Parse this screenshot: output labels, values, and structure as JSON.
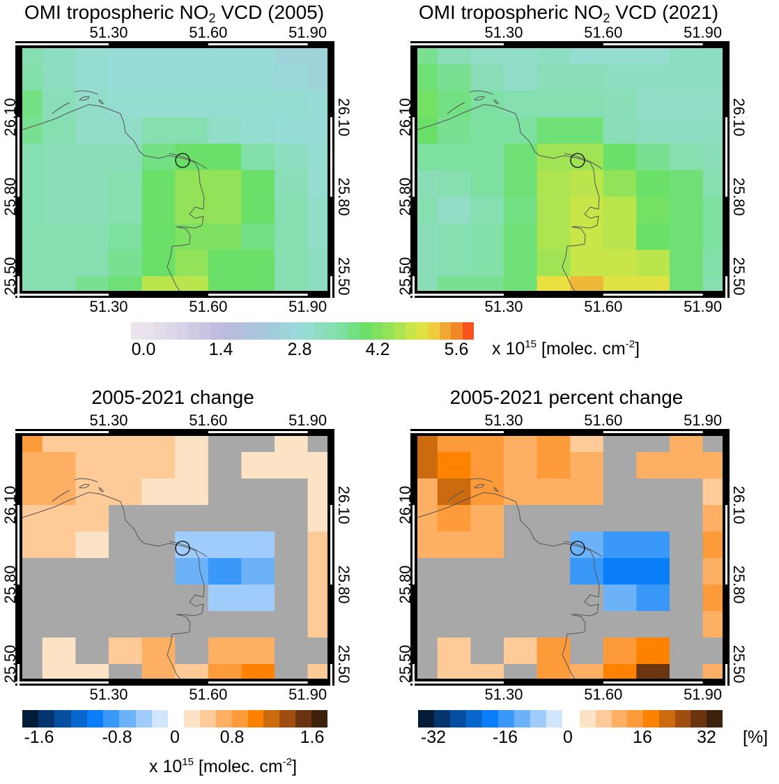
{
  "colors": {
    "no_change_gray": "#a8a8a8",
    "frame": "#000000",
    "coastline": "#555555",
    "main_colormap_stops": [
      {
        "v": 0.0,
        "c": "#ece4ec"
      },
      {
        "v": 0.7,
        "c": "#d8d2e8"
      },
      {
        "v": 1.4,
        "c": "#bcbade"
      },
      {
        "v": 2.1,
        "c": "#a8c6dc"
      },
      {
        "v": 2.8,
        "c": "#98dcd8"
      },
      {
        "v": 3.5,
        "c": "#7ee0a0"
      },
      {
        "v": 3.9,
        "c": "#6ae068"
      },
      {
        "v": 4.3,
        "c": "#92e25a"
      },
      {
        "v": 4.7,
        "c": "#c8e648"
      },
      {
        "v": 5.0,
        "c": "#ece040"
      },
      {
        "v": 5.2,
        "c": "#f0b838"
      },
      {
        "v": 5.5,
        "c": "#f48828"
      },
      {
        "v": 5.9,
        "c": "#fa1e10"
      }
    ],
    "blues_light_to_dark": [
      "#cfe6fb",
      "#a0ccfb",
      "#6cb2f8",
      "#3a98f8",
      "#0a7ef8",
      "#0866cc",
      "#064fa0",
      "#04356e",
      "#021c38"
    ],
    "oranges_light_to_dark": [
      "#fde3c6",
      "#fdca98",
      "#fdb064",
      "#fd9a3a",
      "#fd8200",
      "#cc6a10",
      "#a04e10",
      "#6b3510",
      "#3c220c"
    ]
  },
  "colorbars": {
    "main": {
      "ticks": [
        "0.0",
        "1.4",
        "2.8",
        "4.2",
        "5.6"
      ],
      "range": [
        0,
        5.8
      ],
      "unit_pre": "x 10",
      "unit_sup1": "15",
      "unit_mid": " [molec. cm",
      "unit_sup2": "-2",
      "unit_post": "]"
    },
    "change": {
      "ticks": [
        "-1.6",
        "-0.8",
        "0",
        "0.8",
        "1.6"
      ],
      "class_width": 0.2,
      "unit_pre": "x 10",
      "unit_sup1": "15",
      "unit_mid": " [molec. cm",
      "unit_sup2": "-2",
      "unit_post": "]"
    },
    "percent": {
      "ticks": [
        "-32",
        "-16",
        "0",
        "16",
        "32"
      ],
      "class_width": 4,
      "unit": "[%]"
    }
  },
  "chart_data": [
    {
      "type": "heatmap",
      "title_pre": "OMI tropospheric NO",
      "title_sub": "2",
      "title_post": " VCD (2005)",
      "scale": "main",
      "x_ticks": [
        "51.30",
        "51.60",
        "51.90"
      ],
      "y_ticks": [
        "26.10",
        "25.80",
        "25.50"
      ],
      "x": [
        51.05,
        51.15,
        51.25,
        51.35,
        51.45,
        51.55,
        51.65,
        51.75,
        51.85,
        51.95
      ],
      "y": [
        26.35,
        26.25,
        26.15,
        26.05,
        25.95,
        25.85,
        25.75,
        25.65,
        25.55,
        25.45
      ],
      "values": [
        [
          3.3,
          3.1,
          2.9,
          2.8,
          2.8,
          2.8,
          2.8,
          2.8,
          2.5,
          2.5
        ],
        [
          3.4,
          3.1,
          2.9,
          2.8,
          2.8,
          2.8,
          2.8,
          2.8,
          2.7,
          2.5
        ],
        [
          3.7,
          3.2,
          3.0,
          2.9,
          2.9,
          2.9,
          2.9,
          2.9,
          2.9,
          2.8
        ],
        [
          3.6,
          3.3,
          3.0,
          3.0,
          3.3,
          3.3,
          3.0,
          2.9,
          2.8,
          2.8
        ],
        [
          3.3,
          3.2,
          3.2,
          3.2,
          3.7,
          3.9,
          3.9,
          3.4,
          3.1,
          2.9
        ],
        [
          3.3,
          3.2,
          3.2,
          3.3,
          3.9,
          4.3,
          4.3,
          3.9,
          3.2,
          2.9
        ],
        [
          3.3,
          3.2,
          3.2,
          3.3,
          3.9,
          4.3,
          4.3,
          3.9,
          3.3,
          3.0
        ],
        [
          3.3,
          3.3,
          3.3,
          3.5,
          3.9,
          4.1,
          4.1,
          3.7,
          3.3,
          3.0
        ],
        [
          3.3,
          3.3,
          3.3,
          3.6,
          3.9,
          4.3,
          3.9,
          3.9,
          3.3,
          3.1
        ],
        [
          3.3,
          3.3,
          3.6,
          3.8,
          4.6,
          4.6,
          3.9,
          3.9,
          3.3,
          3.1
        ]
      ]
    },
    {
      "type": "heatmap",
      "title_pre": "OMI tropospheric NO",
      "title_sub": "2",
      "title_post": " VCD (2021)",
      "scale": "main",
      "x_ticks": [
        "51.30",
        "51.60",
        "51.90"
      ],
      "y_ticks": [
        "26.10",
        "25.80",
        "25.50"
      ],
      "x": [
        51.05,
        51.15,
        51.25,
        51.35,
        51.45,
        51.55,
        51.65,
        51.75,
        51.85,
        51.95
      ],
      "y": [
        26.35,
        26.25,
        26.15,
        26.05,
        25.95,
        25.85,
        25.75,
        25.65,
        25.55,
        25.45
      ],
      "values": [
        [
          3.6,
          3.2,
          3.0,
          3.0,
          3.1,
          2.9,
          2.9,
          2.9,
          3.1,
          3.1
        ],
        [
          3.8,
          3.6,
          3.2,
          3.0,
          3.2,
          3.2,
          3.1,
          3.1,
          3.1,
          3.1
        ],
        [
          4.0,
          3.7,
          3.5,
          3.3,
          3.3,
          3.3,
          3.2,
          3.0,
          3.0,
          3.0
        ],
        [
          3.9,
          3.6,
          3.5,
          3.5,
          3.8,
          3.8,
          3.2,
          3.1,
          3.1,
          3.1
        ],
        [
          3.5,
          3.5,
          3.5,
          3.8,
          4.4,
          4.4,
          3.9,
          3.6,
          3.3,
          3.2
        ],
        [
          3.2,
          3.3,
          3.5,
          3.8,
          4.5,
          4.6,
          4.3,
          3.9,
          3.8,
          3.3
        ],
        [
          3.3,
          3.0,
          3.3,
          3.7,
          4.5,
          4.7,
          4.6,
          4.0,
          3.8,
          3.5
        ],
        [
          3.2,
          3.3,
          3.4,
          3.8,
          4.5,
          4.7,
          4.6,
          3.9,
          3.8,
          3.5
        ],
        [
          3.2,
          3.3,
          3.4,
          3.8,
          4.4,
          4.7,
          4.7,
          4.6,
          3.8,
          3.4
        ],
        [
          3.2,
          3.6,
          3.6,
          3.8,
          5.0,
          5.2,
          4.9,
          4.9,
          3.8,
          3.3
        ]
      ]
    },
    {
      "type": "heatmap",
      "title_pre": "2005-2021 change",
      "title_sub": "",
      "title_post": "",
      "scale": "change",
      "x_ticks": [
        "51.30",
        "51.60",
        "51.90"
      ],
      "y_ticks": [
        "26.10",
        "25.80",
        "25.50"
      ],
      "x": [
        51.05,
        51.15,
        51.25,
        51.35,
        51.45,
        51.55,
        51.65,
        51.75,
        51.85,
        51.95
      ],
      "y": [
        26.35,
        26.25,
        26.15,
        26.05,
        25.95,
        25.85,
        25.75,
        25.65,
        25.55,
        25.45
      ],
      "values": [
        [
          0.7,
          0.3,
          0.3,
          0.3,
          0.3,
          0.1,
          null,
          null,
          0.1,
          null
        ],
        [
          0.5,
          0.5,
          0.3,
          0.3,
          0.3,
          0.1,
          null,
          0.1,
          0.1,
          0.1
        ],
        [
          0.5,
          0.5,
          0.3,
          0.3,
          0.1,
          0.1,
          null,
          null,
          null,
          0.1
        ],
        [
          0.3,
          0.3,
          0.3,
          null,
          null,
          null,
          null,
          null,
          null,
          0.1
        ],
        [
          0.3,
          0.3,
          0.1,
          null,
          null,
          -0.3,
          -0.3,
          -0.3,
          null,
          0.3
        ],
        [
          null,
          null,
          null,
          null,
          null,
          -0.5,
          -0.7,
          -0.5,
          null,
          0.3
        ],
        [
          null,
          null,
          null,
          null,
          null,
          null,
          -0.3,
          -0.3,
          null,
          0.3
        ],
        [
          null,
          null,
          null,
          null,
          null,
          null,
          null,
          null,
          null,
          0.3
        ],
        [
          null,
          0.1,
          null,
          0.3,
          0.5,
          null,
          0.5,
          0.5,
          null,
          null
        ],
        [
          null,
          0.1,
          0.1,
          null,
          0.5,
          0.3,
          0.7,
          0.9,
          null,
          0.3
        ]
      ]
    },
    {
      "type": "heatmap",
      "title_pre": "2005-2021 percent change",
      "title_sub": "",
      "title_post": "",
      "scale": "percent",
      "x_ticks": [
        "51.30",
        "51.60",
        "51.90"
      ],
      "y_ticks": [
        "26.10",
        "25.80",
        "25.50"
      ],
      "x": [
        51.05,
        51.15,
        51.25,
        51.35,
        51.45,
        51.55,
        51.65,
        51.75,
        51.85,
        51.95
      ],
      "y": [
        26.35,
        26.25,
        26.15,
        26.05,
        25.95,
        25.85,
        25.75,
        25.65,
        25.55,
        25.45
      ],
      "values": [
        [
          22,
          14,
          14,
          10,
          14,
          6,
          null,
          null,
          10,
          null
        ],
        [
          22,
          18,
          14,
          10,
          14,
          10,
          null,
          10,
          10,
          10
        ],
        [
          10,
          22,
          14,
          10,
          10,
          10,
          null,
          null,
          null,
          6
        ],
        [
          10,
          14,
          10,
          null,
          null,
          null,
          null,
          null,
          null,
          10
        ],
        [
          10,
          10,
          10,
          null,
          null,
          -10,
          -14,
          -14,
          null,
          14
        ],
        [
          null,
          null,
          null,
          null,
          null,
          -14,
          -18,
          -18,
          null,
          10
        ],
        [
          null,
          null,
          null,
          null,
          null,
          null,
          -10,
          -14,
          null,
          14
        ],
        [
          null,
          null,
          null,
          null,
          null,
          null,
          null,
          null,
          null,
          10
        ],
        [
          null,
          6,
          null,
          6,
          14,
          null,
          14,
          18,
          null,
          null
        ],
        [
          null,
          6,
          6,
          null,
          14,
          10,
          18,
          30,
          null,
          10
        ]
      ]
    }
  ]
}
